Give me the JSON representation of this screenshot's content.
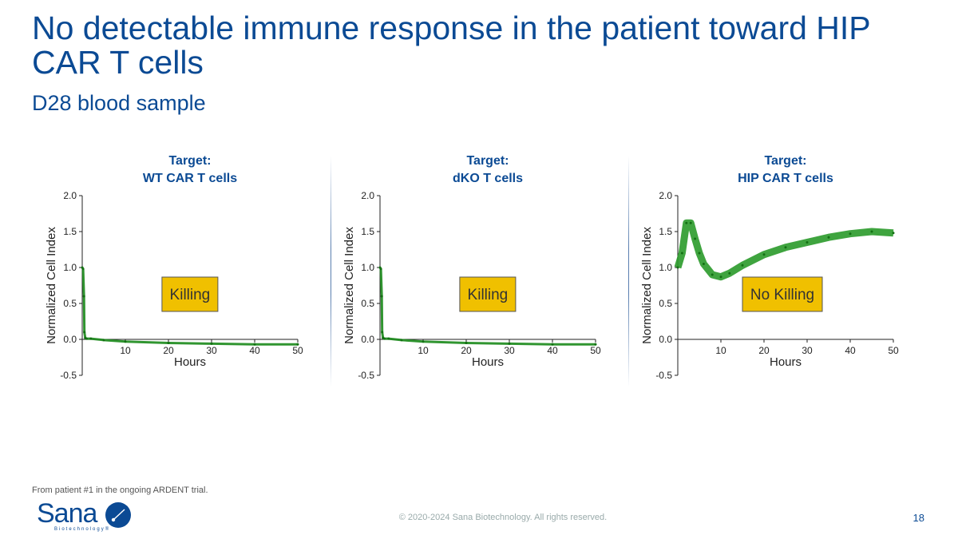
{
  "title": "No detectable immune response in the patient toward HIP CAR T cells",
  "subtitle": "D28 blood sample",
  "footnote": "From patient #1 in the ongoing ARDENT trial.",
  "copyright": "© 2020-2024 Sana Biotechnology. All rights reserved.",
  "page_number": "18",
  "logo": {
    "text": "Sana",
    "sub": "Biotechnology"
  },
  "colors": {
    "title": "#0b4a94",
    "series": "#1a8a1a",
    "annotation_fill": "#f0c000"
  },
  "chart_data": [
    {
      "type": "line",
      "title": [
        "Target:",
        "WT CAR T cells"
      ],
      "xlabel": "Hours",
      "ylabel": "Normalized Cell Index",
      "xlim": [
        0,
        50
      ],
      "ylim": [
        -0.5,
        2.0
      ],
      "xticks": [
        10,
        20,
        30,
        40,
        50
      ],
      "yticks": [
        "2.0",
        "1.5",
        "1.0",
        "0.5",
        "0.0",
        "-0.5"
      ],
      "annotation": "Killing",
      "x": [
        0,
        0.2,
        0.4,
        0.5,
        0.7,
        1,
        2,
        5,
        10,
        20,
        30,
        40,
        50
      ],
      "y": [
        1.0,
        0.98,
        0.6,
        0.1,
        0.02,
        0.01,
        0.01,
        -0.01,
        -0.03,
        -0.05,
        -0.06,
        -0.07,
        -0.07
      ]
    },
    {
      "type": "line",
      "title": [
        "Target:",
        "dKO T cells"
      ],
      "xlabel": "Hours",
      "ylabel": "Normalized Cell Index",
      "xlim": [
        0,
        50
      ],
      "ylim": [
        -0.5,
        2.0
      ],
      "xticks": [
        10,
        20,
        30,
        40,
        50
      ],
      "yticks": [
        "2.0",
        "1.5",
        "1.0",
        "0.5",
        "0.0",
        "-0.5"
      ],
      "annotation": "Killing",
      "x": [
        0,
        0.2,
        0.4,
        0.5,
        0.7,
        1,
        2,
        5,
        10,
        20,
        30,
        40,
        50
      ],
      "y": [
        1.0,
        0.98,
        0.6,
        0.1,
        0.02,
        0.01,
        0.01,
        -0.01,
        -0.03,
        -0.05,
        -0.06,
        -0.07,
        -0.07
      ]
    },
    {
      "type": "line",
      "title": [
        "Target:",
        "HIP CAR T cells"
      ],
      "xlabel": "Hours",
      "ylabel": "Normalized Cell Index",
      "xlim": [
        0,
        50
      ],
      "ylim": [
        -0.5,
        2.0
      ],
      "xticks": [
        10,
        20,
        30,
        40,
        50
      ],
      "yticks": [
        "2.0",
        "1.5",
        "1.0",
        "0.5",
        "0.0",
        "-0.5"
      ],
      "annotation": "No Killing",
      "x": [
        0,
        1,
        2,
        3,
        4,
        5,
        6,
        8,
        10,
        12,
        15,
        20,
        25,
        30,
        35,
        40,
        45,
        50
      ],
      "y": [
        1.0,
        1.2,
        1.62,
        1.62,
        1.4,
        1.2,
        1.05,
        0.9,
        0.87,
        0.92,
        1.03,
        1.18,
        1.28,
        1.35,
        1.42,
        1.47,
        1.5,
        1.48
      ]
    }
  ]
}
